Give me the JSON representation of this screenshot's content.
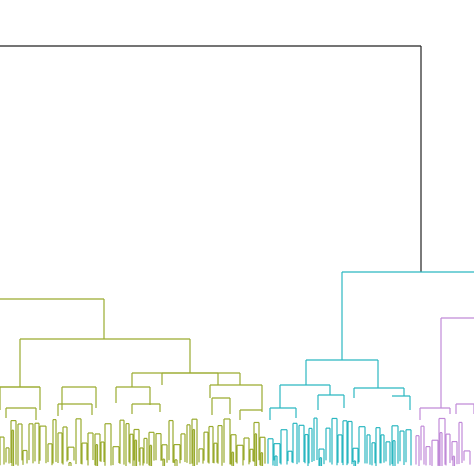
{
  "diagram": {
    "type": "dendrogram",
    "colors": {
      "root": "#222222",
      "cluster_green": "#9aab2f",
      "cluster_cyan": "#2bb7c0",
      "cluster_purple": "#c08ad8"
    },
    "clusters": [
      {
        "id": "green",
        "color_key": "cluster_green"
      },
      {
        "id": "cyan",
        "color_key": "cluster_cyan"
      },
      {
        "id": "purple",
        "color_key": "cluster_purple"
      }
    ]
  }
}
